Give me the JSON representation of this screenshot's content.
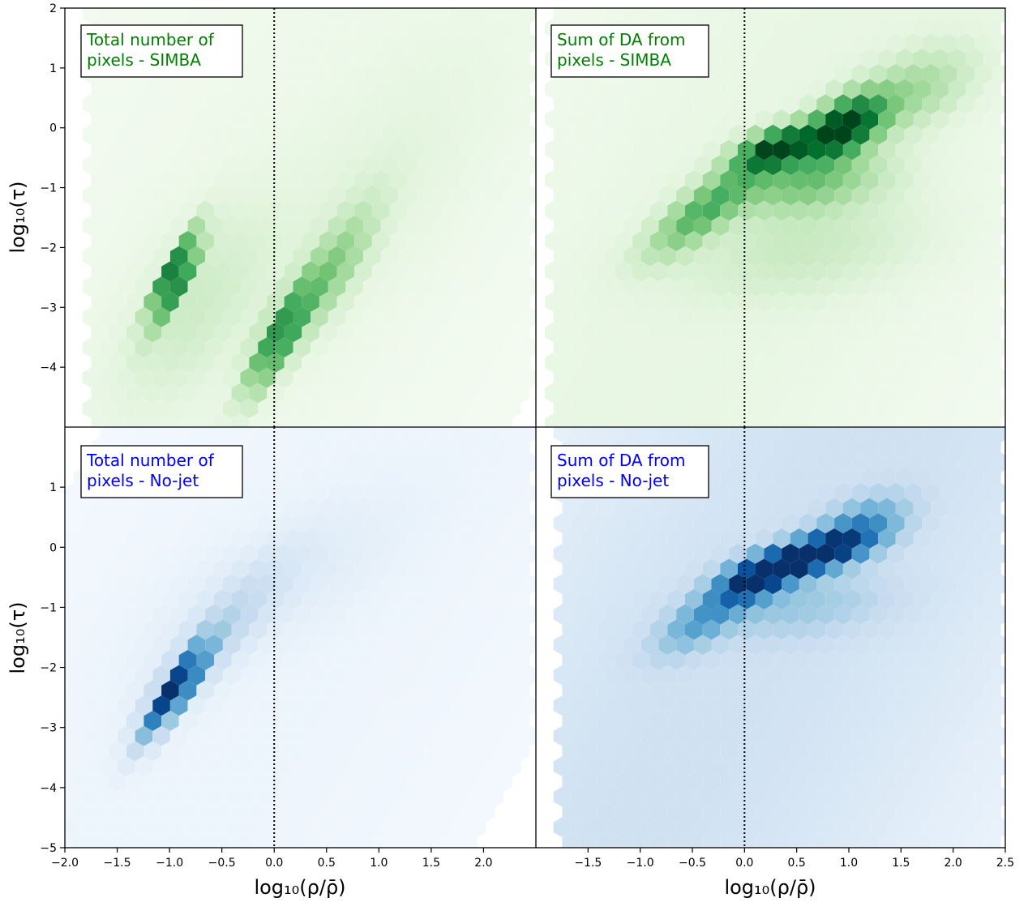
{
  "colors": {
    "simba": "#008000",
    "nojet": "#0000ff",
    "greens_dark": "#00441b",
    "blues_dark": "#08306b"
  },
  "chart_data": [
    {
      "type": "heatmap",
      "panel": "top-left",
      "annotation": [
        "Total number of",
        "pixels - SIMBA"
      ],
      "colormap": "Greens",
      "xlim": [
        -2.0,
        2.5
      ],
      "ylim": [
        -5,
        2
      ],
      "xlabel": "",
      "ylabel": "log₁₀(τ)",
      "x_ticks": [],
      "y_ticks": [
        "2",
        "1",
        "0",
        "−1",
        "−2",
        "−3",
        "−4"
      ],
      "y_tick_values": [
        2,
        1,
        0,
        -1,
        -2,
        -3,
        -4
      ],
      "vline_x": 0,
      "background_level": 0.04,
      "components": [
        {
          "cx": -0.95,
          "cy": -2.5,
          "sx": 0.15,
          "sy": 0.48,
          "rho": 0.86,
          "amp": 1.0
        },
        {
          "cx": 0.05,
          "cy": -3.5,
          "sx": 0.22,
          "sy": 0.65,
          "rho": 0.85,
          "amp": 0.62
        },
        {
          "cx": 0.55,
          "cy": -2.4,
          "sx": 0.28,
          "sy": 0.75,
          "rho": 0.8,
          "amp": 0.3
        },
        {
          "cx": -0.8,
          "cy": -3.0,
          "sx": 0.5,
          "sy": 1.2,
          "rho": 0.6,
          "amp": 0.12
        },
        {
          "cx": 0.9,
          "cy": -1.2,
          "sx": 0.9,
          "sy": 1.8,
          "rho": 0.7,
          "amp": 0.06
        }
      ],
      "support": {
        "xmin": -1.8,
        "xmax": 2.5,
        "ymin": -5.0,
        "ymax": 2.0
      }
    },
    {
      "type": "heatmap",
      "panel": "top-right",
      "annotation": [
        "Sum of DA from",
        "pixels - SIMBA"
      ],
      "colormap": "Greens",
      "xlim": [
        -2.0,
        2.5
      ],
      "ylim": [
        -5,
        2
      ],
      "xlabel": "",
      "ylabel": "",
      "x_ticks": [],
      "y_ticks": [],
      "vline_x": 0,
      "background_level": 0.07,
      "components": [
        {
          "cx": 0.95,
          "cy": 0.0,
          "sx": 0.25,
          "sy": 0.35,
          "rho": 0.5,
          "amp": 1.0
        },
        {
          "cx": 0.3,
          "cy": -0.35,
          "sx": 0.25,
          "sy": 0.25,
          "rho": 0.5,
          "amp": 0.92
        },
        {
          "cx": -0.4,
          "cy": -1.4,
          "sx": 0.35,
          "sy": 0.5,
          "rho": 0.8,
          "amp": 0.45
        },
        {
          "cx": 0.6,
          "cy": -0.9,
          "sx": 0.5,
          "sy": 0.35,
          "rho": 0.3,
          "amp": 0.35
        },
        {
          "cx": 1.6,
          "cy": 0.6,
          "sx": 0.4,
          "sy": 0.5,
          "rho": 0.5,
          "amp": 0.25
        },
        {
          "cx": 0.6,
          "cy": -2.0,
          "sx": 0.8,
          "sy": 0.6,
          "rho": 0.3,
          "amp": 0.12
        }
      ],
      "support": {
        "xmin": -1.85,
        "xmax": 2.5,
        "ymin": -5.0,
        "ymax": 2.0
      }
    },
    {
      "type": "heatmap",
      "panel": "bottom-left",
      "annotation": [
        "Total number of",
        "pixels - No-jet"
      ],
      "colormap": "Blues",
      "xlim": [
        -2.0,
        2.5
      ],
      "ylim": [
        -5,
        2
      ],
      "xlabel": "log₁₀(ρ/ρ̄)",
      "ylabel": "log₁₀(τ)",
      "x_ticks": [
        "−2.0",
        "−1.5",
        "−1.0",
        "−0.5",
        "0.0",
        "0.5",
        "1.0",
        "1.5",
        "2.0"
      ],
      "x_tick_values": [
        -2.0,
        -1.5,
        -1.0,
        -0.5,
        0.0,
        0.5,
        1.0,
        1.5,
        2.0
      ],
      "y_ticks": [
        "1",
        "0",
        "−1",
        "−2",
        "−3",
        "−4",
        "−5"
      ],
      "y_tick_values": [
        1,
        0,
        -1,
        -2,
        -3,
        -4,
        -5
      ],
      "vline_x": 0,
      "background_level": 0.03,
      "components": [
        {
          "cx": -0.95,
          "cy": -2.4,
          "sx": 0.2,
          "sy": 0.5,
          "rho": 0.88,
          "amp": 1.0
        },
        {
          "cx": -0.6,
          "cy": -1.6,
          "sx": 0.4,
          "sy": 0.8,
          "rho": 0.85,
          "amp": 0.18
        },
        {
          "cx": 0.0,
          "cy": -0.6,
          "sx": 0.8,
          "sy": 0.9,
          "rho": 0.7,
          "amp": 0.06
        }
      ],
      "support": {
        "xmin": -2.0,
        "xmax": 2.5,
        "ymin": -5.0,
        "ymax": 2.0
      }
    },
    {
      "type": "heatmap",
      "panel": "bottom-right",
      "annotation": [
        "Sum of DA from",
        "pixels - No-jet"
      ],
      "colormap": "Blues",
      "xlim": [
        -2.0,
        2.5
      ],
      "ylim": [
        -5,
        2
      ],
      "xlabel": "log₁₀(ρ/ρ̄)",
      "ylabel": "",
      "x_ticks": [
        "−1.5",
        "−1.0",
        "−0.5",
        "0.0",
        "0.5",
        "1.0",
        "1.5",
        "2.0",
        "2.5"
      ],
      "x_tick_values": [
        -1.5,
        -1.0,
        -0.5,
        0.0,
        0.5,
        1.0,
        1.5,
        2.0,
        2.5
      ],
      "y_ticks": [],
      "vline_x": 0,
      "background_level": 0.15,
      "components": [
        {
          "cx": 0.6,
          "cy": -0.15,
          "sx": 0.35,
          "sy": 0.25,
          "rho": 0.6,
          "amp": 1.0
        },
        {
          "cx": 0.1,
          "cy": -0.55,
          "sx": 0.25,
          "sy": 0.25,
          "rho": 0.5,
          "amp": 0.75
        },
        {
          "cx": -0.4,
          "cy": -1.2,
          "sx": 0.3,
          "sy": 0.4,
          "rho": 0.7,
          "amp": 0.35
        },
        {
          "cx": 1.1,
          "cy": 0.3,
          "sx": 0.3,
          "sy": 0.35,
          "rho": 0.5,
          "amp": 0.45
        },
        {
          "cx": 0.5,
          "cy": -1.0,
          "sx": 0.6,
          "sy": 0.35,
          "rho": 0.3,
          "amp": 0.18
        }
      ],
      "support": {
        "xmin": -1.75,
        "xmax": 2.5,
        "ymin": -5.0,
        "ymax": 2.0
      }
    }
  ]
}
